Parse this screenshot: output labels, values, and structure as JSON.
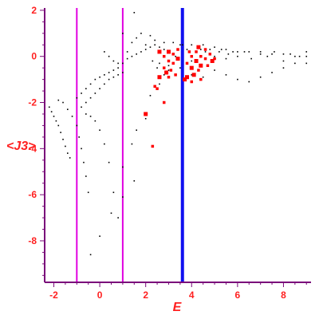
{
  "chart_data": {
    "type": "scatter",
    "xlabel": "E",
    "ylabel": "<J3>",
    "xlim": [
      -2.4,
      9.2
    ],
    "ylim": [
      -9.8,
      2.1
    ],
    "x_ticks": [
      -2,
      0,
      2,
      4,
      6,
      8
    ],
    "y_ticks": [
      2,
      0,
      -2,
      -4,
      -6,
      -8
    ],
    "x_tick_labels": [
      "-2",
      "0",
      "2",
      "4",
      "6",
      "8"
    ],
    "y_tick_labels": [
      "2",
      "0",
      "-2",
      "-4",
      "-6",
      "-8"
    ],
    "vertical_lines": [
      {
        "x": -1.0,
        "color": "#e000e0",
        "label": "magenta-left"
      },
      {
        "x": 1.0,
        "color": "#e000e0",
        "label": "magenta-right"
      },
      {
        "x": 3.6,
        "color": "#1010f0",
        "label": "blue"
      }
    ],
    "series": [
      {
        "color": "#000000",
        "description_points": [
          [
            -2.2,
            -2.2
          ],
          [
            -2.1,
            -2.4
          ],
          [
            -2.0,
            -2.6
          ],
          [
            -1.9,
            -2.8
          ],
          [
            -1.8,
            -3.0
          ],
          [
            -1.7,
            -3.3
          ],
          [
            -1.6,
            -3.6
          ],
          [
            -1.5,
            -3.9
          ],
          [
            -1.4,
            -4.2
          ],
          [
            -1.3,
            -4.4
          ],
          [
            -1.8,
            -1.9
          ],
          [
            -1.6,
            -2.0
          ],
          [
            -1.4,
            -2.3
          ],
          [
            -1.2,
            -2.6
          ],
          [
            -1.0,
            -3.0
          ],
          [
            -0.9,
            -3.5
          ],
          [
            -0.8,
            -4.0
          ],
          [
            -0.7,
            -4.6
          ],
          [
            -0.6,
            -5.2
          ],
          [
            -0.5,
            -5.9
          ],
          [
            -1.0,
            -1.8
          ],
          [
            -0.8,
            -1.6
          ],
          [
            -0.6,
            -1.4
          ],
          [
            -0.4,
            -1.2
          ],
          [
            -0.2,
            -1.0
          ],
          [
            0.0,
            -0.9
          ],
          [
            0.2,
            -0.8
          ],
          [
            0.4,
            -0.7
          ],
          [
            0.6,
            -0.6
          ],
          [
            0.8,
            -0.5
          ],
          [
            -0.8,
            -2.2
          ],
          [
            -0.6,
            -2.0
          ],
          [
            -0.4,
            -1.8
          ],
          [
            -0.2,
            -1.6
          ],
          [
            0.0,
            -1.4
          ],
          [
            0.2,
            -1.2
          ],
          [
            0.4,
            -1.0
          ],
          [
            0.6,
            -0.9
          ],
          [
            0.8,
            -0.8
          ],
          [
            1.0,
            -0.7
          ],
          [
            -0.6,
            -2.5
          ],
          [
            -0.4,
            -2.6
          ],
          [
            -0.2,
            -2.8
          ],
          [
            0.0,
            -3.2
          ],
          [
            0.2,
            -3.8
          ],
          [
            0.4,
            -4.6
          ],
          [
            0.6,
            -5.9
          ],
          [
            0.8,
            -7.0
          ],
          [
            0.0,
            -7.8
          ],
          [
            -0.4,
            -8.6
          ],
          [
            0.2,
            0.2
          ],
          [
            0.4,
            0.0
          ],
          [
            0.6,
            -0.2
          ],
          [
            0.8,
            -0.3
          ],
          [
            1.0,
            -0.3
          ],
          [
            1.2,
            0.2
          ],
          [
            1.4,
            0.6
          ],
          [
            1.6,
            0.8
          ],
          [
            1.8,
            1.0
          ],
          [
            1.0,
            1.0
          ],
          [
            1.2,
            -0.1
          ],
          [
            1.4,
            0.0
          ],
          [
            1.6,
            0.1
          ],
          [
            1.8,
            0.2
          ],
          [
            2.0,
            0.3
          ],
          [
            2.2,
            0.4
          ],
          [
            2.4,
            0.5
          ],
          [
            2.6,
            0.4
          ],
          [
            2.8,
            0.3
          ],
          [
            3.0,
            0.2
          ],
          [
            1.0,
            -4.8
          ],
          [
            1.4,
            -3.8
          ],
          [
            1.6,
            -3.2
          ],
          [
            2.0,
            -2.7
          ],
          [
            2.2,
            -1.7
          ],
          [
            2.6,
            -1.2
          ],
          [
            2.8,
            -0.8
          ],
          [
            1.0,
            -6.1
          ],
          [
            1.5,
            -5.4
          ],
          [
            0.5,
            -6.8
          ],
          [
            1.5,
            1.9
          ],
          [
            2.2,
            0.9
          ],
          [
            2.5,
            -0.5
          ],
          [
            3.0,
            -0.6
          ],
          [
            3.3,
            0.0
          ],
          [
            3.5,
            0.5
          ],
          [
            3.8,
            0.3
          ],
          [
            4.0,
            -0.2
          ],
          [
            4.3,
            0.4
          ],
          [
            4.6,
            0.2
          ],
          [
            4.8,
            0.1
          ],
          [
            5.0,
            0.0
          ],
          [
            5.3,
            0.3
          ],
          [
            5.5,
            -0.1
          ],
          [
            5.8,
            0.2
          ],
          [
            6.0,
            0.0
          ],
          [
            6.3,
            0.2
          ],
          [
            6.6,
            -0.1
          ],
          [
            7.0,
            0.2
          ],
          [
            7.3,
            0.0
          ],
          [
            7.6,
            0.2
          ],
          [
            8.0,
            -0.2
          ],
          [
            8.3,
            0.1
          ],
          [
            8.7,
            0.0
          ],
          [
            9.0,
            0.2
          ],
          [
            5.0,
            -0.6
          ],
          [
            5.5,
            -0.8
          ],
          [
            6.0,
            -1.0
          ],
          [
            6.5,
            -1.1
          ],
          [
            7.0,
            -0.9
          ],
          [
            7.5,
            -0.7
          ],
          [
            8.0,
            -0.5
          ],
          [
            8.5,
            -0.3
          ],
          [
            9.0,
            -0.3
          ],
          [
            4.5,
            -0.9
          ],
          [
            4.0,
            -0.8
          ],
          [
            3.5,
            -0.5
          ],
          [
            3.0,
            -0.4
          ],
          [
            2.6,
            -0.3
          ],
          [
            2.3,
            -0.2
          ],
          [
            4.5,
            0.5
          ],
          [
            5.0,
            0.4
          ],
          [
            5.5,
            0.3
          ],
          [
            6.0,
            0.2
          ],
          [
            6.5,
            0.2
          ],
          [
            7.0,
            0.1
          ],
          [
            7.5,
            0.1
          ],
          [
            8.0,
            0.1
          ],
          [
            8.5,
            0.0
          ],
          [
            9.0,
            0.0
          ],
          [
            2.0,
            0.5
          ],
          [
            2.4,
            0.7
          ],
          [
            2.8,
            0.6
          ],
          [
            3.2,
            0.6
          ],
          [
            3.6,
            0.5
          ],
          [
            4.0,
            0.5
          ],
          [
            4.4,
            0.3
          ],
          [
            4.8,
            0.3
          ],
          [
            5.2,
            0.2
          ],
          [
            5.6,
            0.1
          ]
        ]
      },
      {
        "color": "#ff0000",
        "description_points": [
          [
            2.6,
            0.2
          ],
          [
            2.8,
            0.0
          ],
          [
            3.0,
            -0.2
          ],
          [
            3.0,
            0.2
          ],
          [
            3.2,
            -0.3
          ],
          [
            3.2,
            0.1
          ],
          [
            3.4,
            -0.1
          ],
          [
            3.4,
            0.3
          ],
          [
            2.8,
            -0.5
          ],
          [
            2.9,
            -0.7
          ],
          [
            3.1,
            -0.6
          ],
          [
            3.3,
            -0.8
          ],
          [
            2.6,
            -0.9
          ],
          [
            3.0,
            -0.9
          ],
          [
            4.0,
            0.0
          ],
          [
            4.2,
            -0.2
          ],
          [
            4.2,
            0.2
          ],
          [
            4.4,
            0.0
          ],
          [
            4.4,
            -0.4
          ],
          [
            4.6,
            -0.1
          ],
          [
            4.6,
            0.3
          ],
          [
            4.0,
            -0.5
          ],
          [
            3.8,
            -0.3
          ],
          [
            3.9,
            0.2
          ],
          [
            4.1,
            -0.8
          ],
          [
            4.3,
            -0.6
          ],
          [
            4.7,
            -0.4
          ],
          [
            4.9,
            -0.2
          ],
          [
            5.0,
            -0.1
          ],
          [
            4.8,
            0.1
          ],
          [
            3.8,
            -0.9
          ],
          [
            4.4,
            -1.0
          ],
          [
            4.0,
            -1.1
          ],
          [
            3.7,
            -1.0
          ],
          [
            2.8,
            -2.0
          ],
          [
            2.3,
            -3.9
          ],
          [
            2.0,
            -2.5
          ],
          [
            2.5,
            -1.4
          ],
          [
            2.4,
            -1.3
          ],
          [
            4.3,
            0.4
          ]
        ]
      }
    ]
  }
}
